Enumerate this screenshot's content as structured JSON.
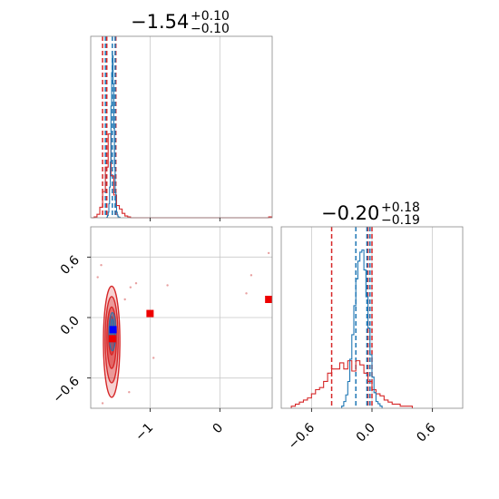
{
  "chart_data": {
    "type": "corner",
    "params": [
      {
        "title": {
          "median": "−1.54",
          "plus": "+0.10",
          "minus": "−0.10"
        }
      },
      {
        "title": {
          "median": "−0.20",
          "plus": "+0.18",
          "minus": "−0.19"
        }
      }
    ],
    "axes": {
      "x0": {
        "range": [
          -1.85,
          0.75
        ],
        "ticks": [
          -1,
          0
        ],
        "tick_labels": [
          "−1",
          "0"
        ]
      },
      "x1": {
        "range": [
          -0.9,
          0.9
        ],
        "ticks": [
          -0.6,
          0.0,
          0.6
        ],
        "tick_labels": [
          "−0.6",
          "0.0",
          "0.6"
        ]
      },
      "y_scatter": {
        "range": [
          -0.9,
          0.9
        ],
        "ticks": [
          -0.6,
          0.0,
          0.6
        ],
        "tick_labels": [
          "−0.6",
          "0.0",
          "0.6"
        ]
      }
    },
    "grid": true,
    "colors": {
      "red": "#d62728",
      "blue": "#1f77b4",
      "blue_marker": "#0000ff",
      "red_marker": "#ee0000"
    },
    "marg0": {
      "red_hist": {
        "bins": [
          -1.84,
          -1.8,
          -1.76,
          -1.72,
          -1.68,
          -1.64,
          -1.6,
          -1.56,
          -1.52,
          -1.48,
          -1.44,
          -1.4,
          -1.36,
          -1.32,
          -1.28,
          -1.24,
          0.7,
          0.74
        ],
        "counts": [
          0,
          0.01,
          0.04,
          0.12,
          0.3,
          0.58,
          0.96,
          0.48,
          0.26,
          0.14,
          0.1,
          0.05,
          0.02,
          0.01,
          0,
          0,
          0.01
        ]
      },
      "blue_hist": {
        "bins": [
          -1.62,
          -1.61,
          -1.6,
          -1.59,
          -1.58,
          -1.57,
          -1.56,
          -1.55,
          -1.54,
          -1.53,
          -1.52,
          -1.51,
          -1.5,
          -1.49,
          -1.48,
          -1.47,
          -1.46,
          -1.45,
          -1.44,
          -1.43
        ],
        "counts": [
          0.01,
          0.04,
          0.1,
          0.25,
          0.55,
          1.0,
          2.0,
          2.6,
          2.9,
          2.4,
          1.6,
          0.9,
          0.45,
          0.2,
          0.1,
          0.05,
          0.02,
          0.01,
          0.01
        ]
      },
      "red_lines": [
        -1.68,
        -1.62,
        -1.49
      ],
      "blue_lines": [
        -1.64,
        -1.54,
        -1.5
      ]
    },
    "marg1": {
      "red_hist": {
        "bins": [
          -0.8,
          -0.76,
          -0.72,
          -0.68,
          -0.64,
          -0.6,
          -0.56,
          -0.52,
          -0.48,
          -0.44,
          -0.4,
          -0.36,
          -0.32,
          -0.28,
          -0.24,
          -0.2,
          -0.16,
          -0.12,
          -0.08,
          -0.04,
          0.0,
          0.04,
          0.08,
          0.12,
          0.16,
          0.2,
          0.24,
          0.28,
          0.32,
          0.36,
          0.4
        ],
        "counts": [
          0.01,
          0.02,
          0.03,
          0.04,
          0.05,
          0.07,
          0.09,
          0.1,
          0.13,
          0.17,
          0.19,
          0.19,
          0.22,
          0.19,
          0.23,
          0.18,
          0.23,
          0.21,
          0.17,
          0.13,
          0.09,
          0.07,
          0.06,
          0.04,
          0.03,
          0.02,
          0.02,
          0.01,
          0.01,
          0.01
        ]
      },
      "blue_hist": {
        "bins": [
          -0.3,
          -0.28,
          -0.26,
          -0.24,
          -0.22,
          -0.2,
          -0.18,
          -0.16,
          -0.14,
          -0.12,
          -0.1,
          -0.08,
          -0.06,
          -0.04,
          -0.02,
          0.0,
          0.02,
          0.04,
          0.06,
          0.08,
          0.1
        ],
        "counts": [
          0.01,
          0.03,
          0.06,
          0.12,
          0.22,
          0.33,
          0.46,
          0.58,
          0.66,
          0.7,
          0.71,
          0.62,
          0.5,
          0.36,
          0.24,
          0.14,
          0.07,
          0.03,
          0.02,
          0.01
        ]
      },
      "red_lines": [
        -0.4,
        -0.04,
        0.0
      ],
      "blue_lines": [
        -0.16,
        -0.05,
        -0.02
      ]
    },
    "scatter": {
      "markers": [
        {
          "x": -1.53,
          "y": -0.12,
          "color": "#0000ff"
        },
        {
          "x": -1.54,
          "y": -0.21,
          "color": "#ee0000"
        },
        {
          "x": -1.0,
          "y": 0.04,
          "color": "#ee0000"
        },
        {
          "x": 0.7,
          "y": 0.18,
          "color": "#ee0000"
        }
      ],
      "red_contours": [
        {
          "cx": -1.55,
          "cy": -0.24,
          "rx": 0.28,
          "ry": 0.58,
          "opacity": 0.35
        },
        {
          "cx": -1.55,
          "cy": -0.22,
          "rx": 0.22,
          "ry": 0.45,
          "opacity": 0.55
        },
        {
          "cx": -1.55,
          "cy": -0.2,
          "rx": 0.16,
          "ry": 0.32,
          "opacity": 0.75
        },
        {
          "cx": -1.55,
          "cy": -0.18,
          "rx": 0.1,
          "ry": 0.2,
          "opacity": 0.9
        }
      ],
      "blue_contours": [
        {
          "cx": -1.54,
          "cy": -0.14,
          "rx": 0.09,
          "ry": 0.2,
          "opacity": 0.7
        },
        {
          "cx": -1.54,
          "cy": -0.13,
          "rx": 0.05,
          "ry": 0.12,
          "opacity": 0.9
        }
      ],
      "outliers": [
        {
          "x": -1.28,
          "y": 0.3
        },
        {
          "x": -1.2,
          "y": 0.34
        },
        {
          "x": -0.95,
          "y": -0.4
        },
        {
          "x": -0.75,
          "y": 0.32
        },
        {
          "x": 0.38,
          "y": 0.24
        },
        {
          "x": 0.45,
          "y": 0.42
        },
        {
          "x": 0.7,
          "y": 0.64
        },
        {
          "x": -1.7,
          "y": 0.52
        },
        {
          "x": -1.75,
          "y": 0.4
        },
        {
          "x": -1.3,
          "y": -0.74
        },
        {
          "x": -1.68,
          "y": -0.85
        },
        {
          "x": -1.36,
          "y": 0.18
        }
      ]
    }
  }
}
